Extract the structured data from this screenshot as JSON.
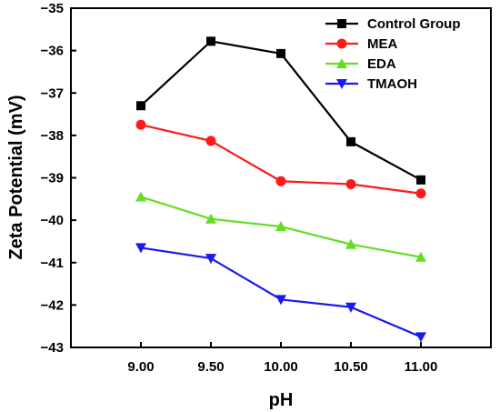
{
  "chart_data": {
    "type": "line",
    "title": "",
    "xlabel": "pH",
    "ylabel": "Zeta Potential (mV)",
    "categories": [
      "9.00",
      "9.50",
      "10.00",
      "10.50",
      "11.00"
    ],
    "x": [
      9.0,
      9.5,
      10.0,
      10.5,
      11.0
    ],
    "xlim": [
      8.5,
      11.5
    ],
    "ylim": [
      -43,
      -35
    ],
    "yticks": [
      -35,
      -36,
      -37,
      -38,
      -39,
      -40,
      -41,
      -42,
      -43
    ],
    "grid": false,
    "legend_position": "top-right",
    "series": [
      {
        "name": "Control Group",
        "color": "#000000",
        "marker": "square",
        "values": [
          -37.3,
          -35.78,
          -36.07,
          -38.15,
          -39.05
        ]
      },
      {
        "name": "MEA",
        "color": "#ff1a1a",
        "marker": "circle",
        "values": [
          -37.75,
          -38.13,
          -39.08,
          -39.15,
          -39.37
        ]
      },
      {
        "name": "EDA",
        "color": "#66dd22",
        "marker": "triangle-up",
        "values": [
          -39.45,
          -39.97,
          -40.15,
          -40.57,
          -40.87
        ]
      },
      {
        "name": "TMAOH",
        "color": "#1a1aee",
        "marker": "triangle-down",
        "values": [
          -40.65,
          -40.9,
          -41.87,
          -42.05,
          -42.75
        ]
      }
    ]
  }
}
